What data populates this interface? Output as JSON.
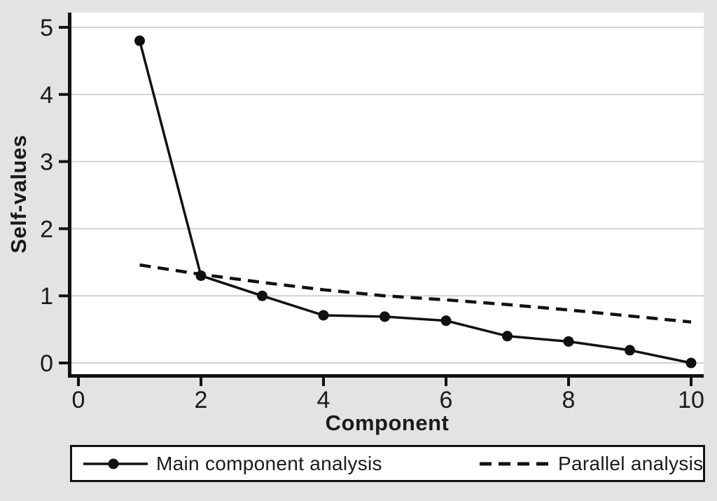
{
  "figure": {
    "background": "#e3e3e3",
    "plot_bg": "#ffffff",
    "grid_color": "#d2d2d2",
    "axis_color": "#111111",
    "text_color": "#1a1a1a"
  },
  "chart_data": {
    "type": "line",
    "title": "",
    "xlabel": "Component",
    "ylabel": "Self-values",
    "xlim": [
      0,
      10
    ],
    "ylim": [
      0,
      5
    ],
    "xticks": [
      0,
      2,
      4,
      6,
      8,
      10
    ],
    "yticks": [
      0,
      1,
      2,
      3,
      4,
      5
    ],
    "grid": "horizontal gridlines at each y tick",
    "legend_position": "bottom",
    "x": [
      1,
      2,
      3,
      4,
      5,
      6,
      7,
      8,
      9,
      10
    ],
    "series": [
      {
        "name": "Main component analysis",
        "line_style": "solid",
        "marker": "circle",
        "color": "#111111",
        "values": [
          4.8,
          1.3,
          1.0,
          0.71,
          0.69,
          0.63,
          0.4,
          0.32,
          0.19,
          0.0
        ]
      },
      {
        "name": "Parallel analysis",
        "line_style": "dashed",
        "marker": "none",
        "color": "#111111",
        "values": [
          1.46,
          1.32,
          1.2,
          1.09,
          1.0,
          0.94,
          0.87,
          0.79,
          0.7,
          0.61
        ]
      }
    ]
  }
}
